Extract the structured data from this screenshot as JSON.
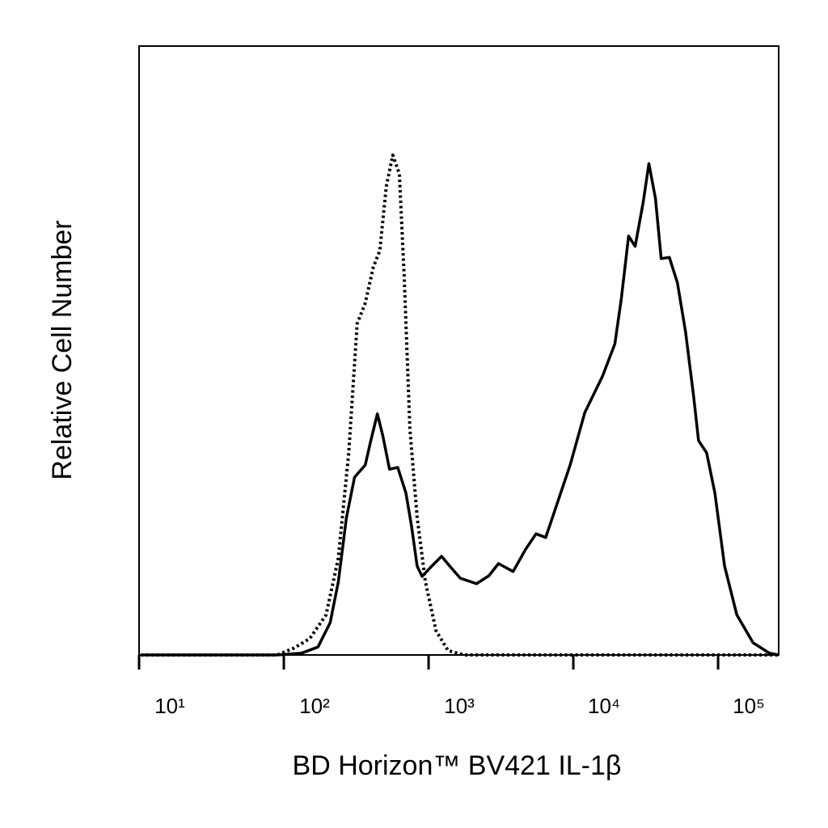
{
  "chart_data": {
    "type": "line",
    "xlabel": "BD Horizon™ BV421 IL-1β",
    "ylabel": "Relative Cell Number",
    "xscale": "log",
    "xlim": [
      10,
      262144
    ],
    "ylim": [
      0,
      100
    ],
    "xticks": [
      {
        "value": 10,
        "label": "10¹"
      },
      {
        "value": 100,
        "label": "10²"
      },
      {
        "value": 1000,
        "label": "10³"
      },
      {
        "value": 10000,
        "label": "10⁴"
      },
      {
        "value": 100000,
        "label": "10⁵"
      }
    ],
    "series": [
      {
        "color": "#000000",
        "style": "dotted",
        "x": [
          10.3,
          90,
          117,
          151,
          196,
          238,
          281,
          321,
          365,
          415,
          460,
          511,
          566,
          628,
          678,
          743,
          834,
          951,
          1125,
          1365,
          1766,
          262144
        ],
        "values": [
          0,
          0,
          1.1,
          2.7,
          6.6,
          15.9,
          33.2,
          54.4,
          57.8,
          63.7,
          66.4,
          77.0,
          82.1,
          79.0,
          62.4,
          37.2,
          22.6,
          12.0,
          4.0,
          0.7,
          0,
          0
        ]
      },
      {
        "color": "#000000",
        "style": "solid",
        "x": [
          10.3,
          90,
          133,
          172,
          209,
          238,
          271,
          308,
          365,
          399,
          443,
          484,
          537,
          612,
          697,
          762,
          834,
          902,
          1052,
          1230,
          1400,
          1656,
          2143,
          2606,
          3041,
          3837,
          4667,
          5520,
          6442,
          7820,
          9506,
          11990,
          15920,
          19360,
          21430,
          24100,
          26730,
          30410,
          33270,
          36900,
          40450,
          46030,
          52360,
          59570,
          67780,
          73280,
          83370,
          95060,
          110900,
          134600,
          174400,
          225900,
          262144
        ],
        "values": [
          0,
          0,
          0.3,
          1.3,
          5.3,
          12.0,
          22.6,
          29.2,
          31.2,
          35.2,
          39.6,
          35.9,
          30.5,
          30.8,
          26.6,
          21.2,
          14.6,
          12.9,
          14.6,
          16.2,
          14.6,
          12.6,
          11.7,
          13.0,
          15.0,
          13.7,
          17.3,
          19.9,
          19.3,
          25.2,
          31.2,
          39.8,
          45.8,
          51.1,
          58.4,
          68.8,
          67.1,
          74.4,
          80.7,
          75.0,
          65.1,
          65.3,
          61.1,
          53.1,
          42.5,
          35.2,
          33.2,
          26.6,
          14.6,
          6.6,
          2.0,
          0.3,
          0
        ]
      }
    ]
  }
}
